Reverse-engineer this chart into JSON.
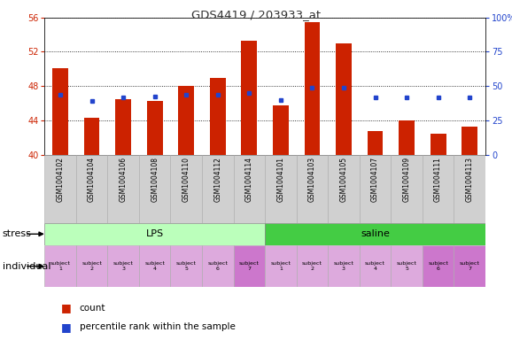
{
  "title": "GDS4419 / 203933_at",
  "categories": [
    "GSM1004102",
    "GSM1004104",
    "GSM1004106",
    "GSM1004108",
    "GSM1004110",
    "GSM1004112",
    "GSM1004114",
    "GSM1004101",
    "GSM1004103",
    "GSM1004105",
    "GSM1004107",
    "GSM1004109",
    "GSM1004111",
    "GSM1004113"
  ],
  "bar_values": [
    50.1,
    44.3,
    46.5,
    46.3,
    48.0,
    49.0,
    53.3,
    45.8,
    55.5,
    53.0,
    42.8,
    44.0,
    42.5,
    43.3
  ],
  "dot_values": [
    47.0,
    46.3,
    46.7,
    46.8,
    47.0,
    47.0,
    47.2,
    46.4,
    47.8,
    47.8,
    46.7,
    46.7,
    46.7,
    46.7
  ],
  "bar_base": 40.0,
  "ylim_left": [
    40,
    56
  ],
  "ylim_right": [
    0,
    100
  ],
  "yticks_left": [
    40,
    44,
    48,
    52,
    56
  ],
  "yticks_right": [
    0,
    25,
    50,
    75,
    100
  ],
  "bar_color": "#cc2200",
  "dot_color": "#2244cc",
  "lps_color": "#bbffbb",
  "saline_color": "#44cc44",
  "indiv_colors": [
    "#ddaadd",
    "#ddaadd",
    "#ddaadd",
    "#ddaadd",
    "#ddaadd",
    "#ddaadd",
    "#cc77cc",
    "#ddaadd",
    "#ddaadd",
    "#ddaadd",
    "#ddaadd",
    "#ddaadd",
    "#cc77cc",
    "#cc77cc"
  ],
  "individual_labels": [
    "subject\n1",
    "subject\n2",
    "subject\n3",
    "subject\n4",
    "subject\n5",
    "subject\n6",
    "subject\n7",
    "subject\n1",
    "subject\n2",
    "subject\n3",
    "subject\n4",
    "subject\n5",
    "subject\n6",
    "subject\n7"
  ],
  "stress_label": "stress",
  "individual_label": "individual",
  "legend_count": "count",
  "legend_percentile": "percentile rank within the sample",
  "title_color": "#333333",
  "left_axis_color": "#cc2200",
  "right_axis_color": "#2244cc",
  "bg_color": "#ffffff",
  "xtick_bg": "#d0d0d0"
}
